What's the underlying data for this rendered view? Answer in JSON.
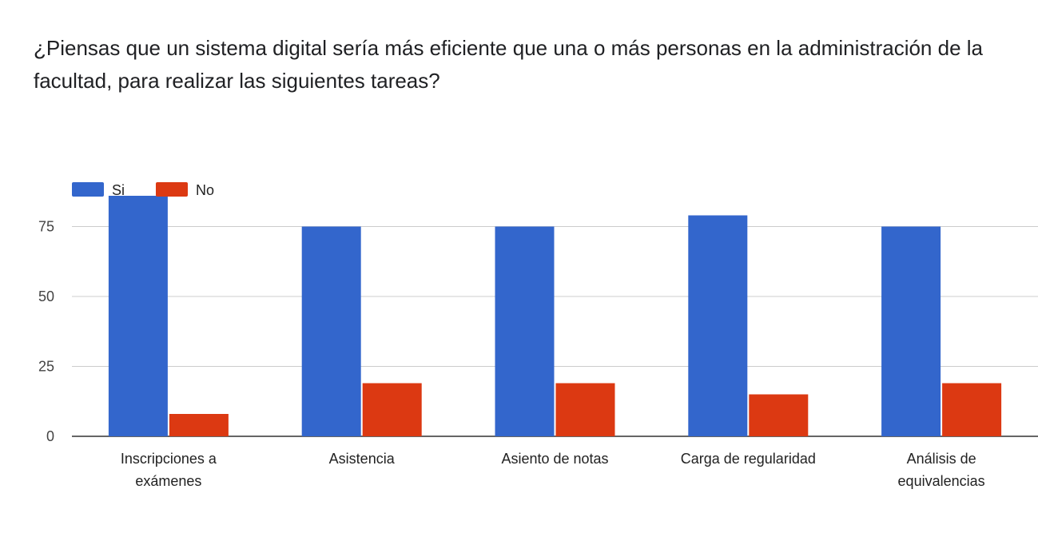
{
  "chart_data": {
    "type": "bar",
    "title": "¿Piensas que un sistema digital sería más eficiente que una o más personas en la administración de la facultad, para realizar las siguientes tareas?",
    "categories": [
      [
        "Inscripciones a",
        "exámenes"
      ],
      [
        "Asistencia"
      ],
      [
        "Asiento de notas"
      ],
      [
        "Carga de regularidad"
      ],
      [
        "Análisis de",
        "equivalencias"
      ]
    ],
    "series": [
      {
        "name": "Si",
        "color": "#3366cc",
        "values": [
          86,
          75,
          75,
          79,
          75
        ]
      },
      {
        "name": "No",
        "color": "#dc3912",
        "values": [
          8,
          19,
          19,
          15,
          19
        ]
      }
    ],
    "yticks": [
      0,
      25,
      50,
      75
    ],
    "ylim": [
      0,
      90
    ],
    "legend_position": "top-left",
    "grid": true
  }
}
